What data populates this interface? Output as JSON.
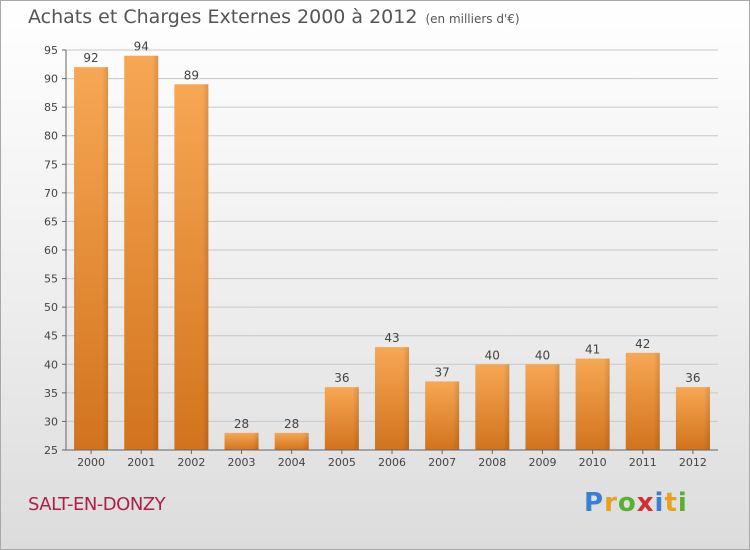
{
  "title": "Achats et Charges Externes 2000 à 2012",
  "unit": "(en milliers d'€)",
  "town": "SALT-EN-DONZY",
  "logo": {
    "text": "Proxiti"
  },
  "colors": {
    "bar_light": "#f6a24e",
    "bar_dark": "#d0701a",
    "town": "#b01d4a"
  },
  "chart_data": {
    "type": "bar",
    "title": "Achats et Charges Externes 2000 à 2012",
    "subtitle": "(en milliers d'€)",
    "categories": [
      "2000",
      "2001",
      "2002",
      "2003",
      "2004",
      "2005",
      "2006",
      "2007",
      "2008",
      "2009",
      "2010",
      "2011",
      "2012"
    ],
    "values": [
      92,
      94,
      89,
      28,
      28,
      36,
      43,
      37,
      40,
      40,
      41,
      42,
      36
    ],
    "ylim": [
      25,
      95
    ],
    "yticks": [
      25,
      30,
      35,
      40,
      45,
      50,
      55,
      60,
      65,
      70,
      75,
      80,
      85,
      90,
      95
    ],
    "grid": true,
    "data_labels": true
  }
}
